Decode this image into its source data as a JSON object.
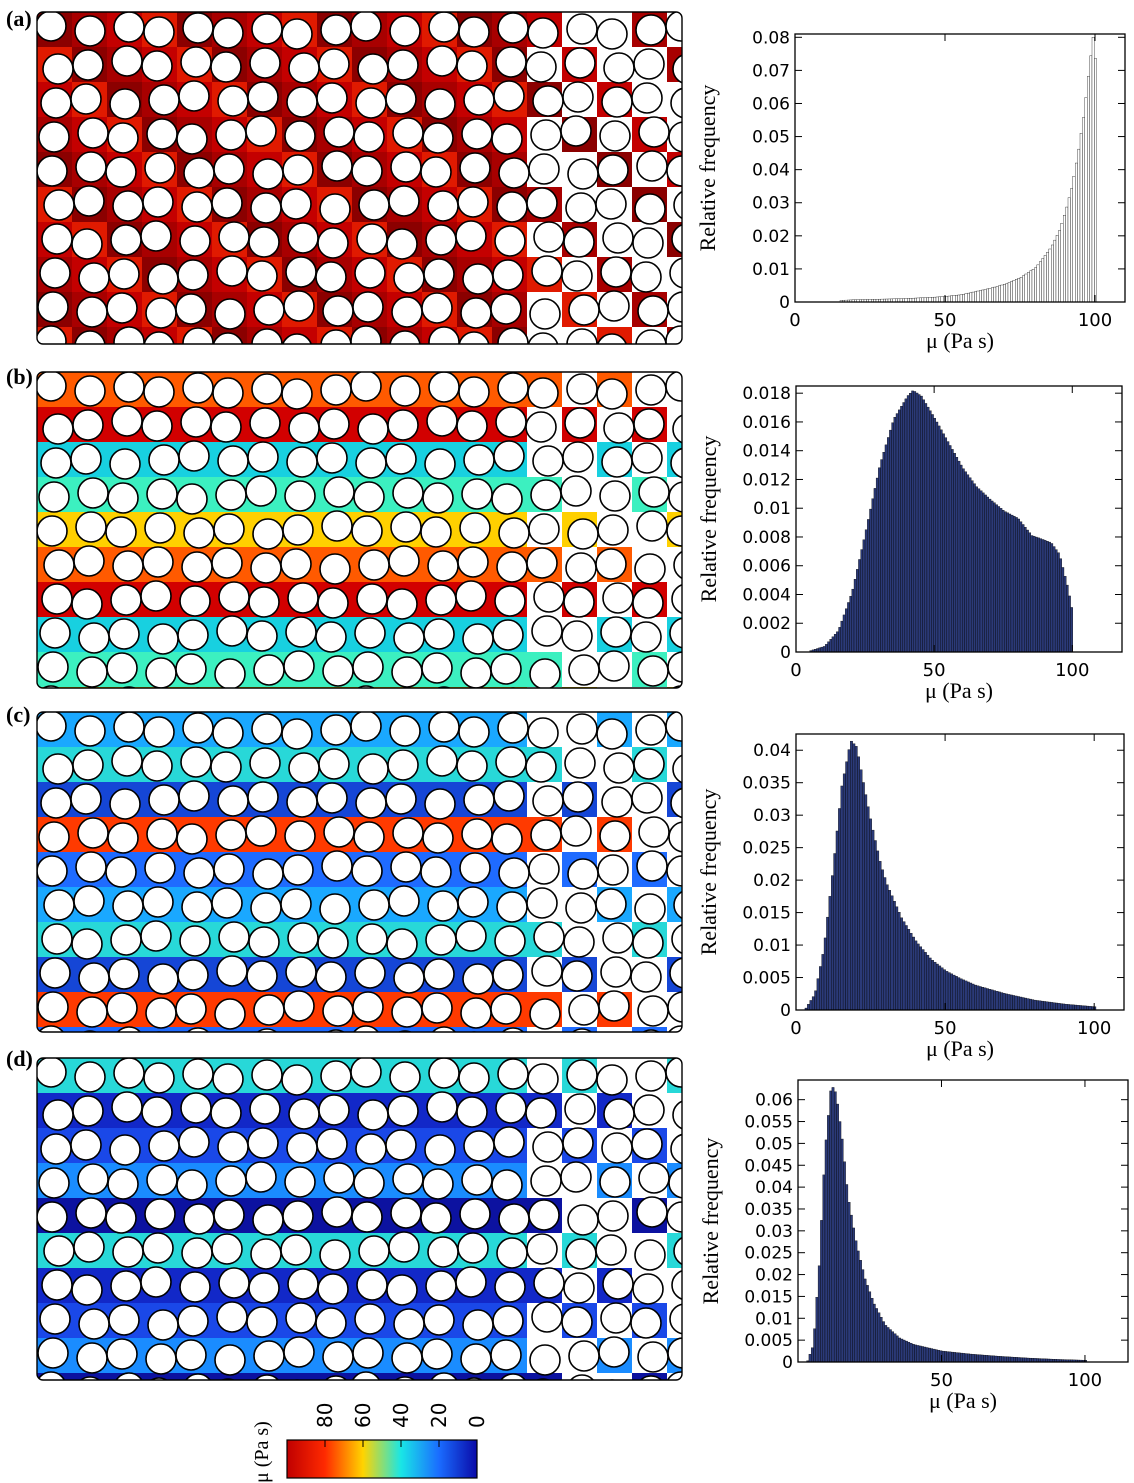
{
  "panel_labels": [
    "(a)",
    "(b)",
    "(c)",
    "(d)"
  ],
  "colorbar": {
    "label": "μ (Pa s)",
    "ticks": [
      "80",
      "60",
      "40",
      "20",
      "0"
    ],
    "range": [
      0,
      100
    ],
    "colors": [
      "#c00000",
      "#ff2a00",
      "#ffd400",
      "#19e6e6",
      "#1a6cff",
      "#0a0aa8"
    ]
  },
  "chart_data": [
    {
      "type": "bar",
      "title": "",
      "xlabel": "μ (Pa s)",
      "ylabel": "Relative frequency",
      "xlim": [
        0,
        110
      ],
      "ylim": [
        0,
        0.081
      ],
      "xticks": [
        "0",
        "50",
        "100"
      ],
      "yticks": [
        "0",
        "0.01",
        "0.02",
        "0.03",
        "0.04",
        "0.05",
        "0.06",
        "0.07",
        "0.08"
      ],
      "bar_color": "#ffffff",
      "x": [
        15,
        20,
        25,
        30,
        35,
        40,
        45,
        50,
        55,
        60,
        65,
        70,
        75,
        80,
        85,
        88,
        90,
        92,
        94,
        96,
        98,
        99,
        100
      ],
      "values": [
        0.0005,
        0.0007,
        0.0008,
        0.0009,
        0.001,
        0.0012,
        0.0014,
        0.0017,
        0.0022,
        0.0032,
        0.0042,
        0.0055,
        0.0075,
        0.0105,
        0.0165,
        0.022,
        0.028,
        0.035,
        0.045,
        0.057,
        0.073,
        0.08,
        0.072
      ]
    },
    {
      "type": "bar",
      "title": "",
      "xlabel": "μ (Pa s)",
      "ylabel": "Relative frequency",
      "xlim": [
        0,
        118
      ],
      "ylim": [
        0,
        0.0185
      ],
      "xticks": [
        "0",
        "50",
        "100"
      ],
      "yticks": [
        "0",
        "0.002",
        "0.004",
        "0.006",
        "0.008",
        "0.01",
        "0.012",
        "0.014",
        "0.016",
        "0.018"
      ],
      "bar_color": "#2b3a78",
      "x": [
        5,
        10,
        15,
        20,
        25,
        30,
        35,
        40,
        42,
        45,
        50,
        55,
        60,
        65,
        70,
        75,
        80,
        85,
        88,
        92,
        95,
        98,
        100
      ],
      "values": [
        0.0001,
        0.0004,
        0.0015,
        0.0042,
        0.0085,
        0.013,
        0.0162,
        0.0178,
        0.0182,
        0.0178,
        0.0162,
        0.0145,
        0.0128,
        0.0115,
        0.0106,
        0.0098,
        0.0093,
        0.0081,
        0.0079,
        0.0076,
        0.0068,
        0.0045,
        0.0025
      ]
    },
    {
      "type": "bar",
      "title": "",
      "xlabel": "μ (Pa s)",
      "ylabel": "Relative frequency",
      "xlim": [
        0,
        110
      ],
      "ylim": [
        0,
        0.0425
      ],
      "xticks": [
        "0",
        "50",
        "100"
      ],
      "yticks": [
        "0",
        "0.005",
        "0.01",
        "0.015",
        "0.02",
        "0.025",
        "0.03",
        "0.035",
        "0.04"
      ],
      "bar_color": "#2b3a78",
      "x": [
        3,
        6,
        9,
        12,
        15,
        18,
        20,
        22,
        25,
        28,
        30,
        35,
        40,
        45,
        50,
        55,
        60,
        70,
        80,
        90,
        100
      ],
      "values": [
        0.0003,
        0.0025,
        0.0095,
        0.0215,
        0.0345,
        0.0415,
        0.0405,
        0.0355,
        0.0285,
        0.0225,
        0.0195,
        0.0142,
        0.0105,
        0.0078,
        0.006,
        0.0048,
        0.0038,
        0.0025,
        0.0015,
        0.0009,
        0.0005
      ]
    },
    {
      "type": "bar",
      "title": "",
      "xlabel": "μ (Pa s)",
      "ylabel": "Relative frequency",
      "xlim": [
        0,
        115
      ],
      "ylim": [
        0,
        0.0645
      ],
      "xticks": [
        "50",
        "100"
      ],
      "yticks": [
        "0",
        "0.005",
        "0.01",
        "0.015",
        "0.02",
        "0.025",
        "0.03",
        "0.035",
        "0.04",
        "0.045",
        "0.05",
        "0.055",
        "0.06"
      ],
      "bar_color": "#2b3a78",
      "x": [
        3,
        5,
        7,
        9,
        11,
        12,
        13,
        15,
        17,
        20,
        23,
        26,
        30,
        35,
        40,
        50,
        60,
        70,
        80,
        90,
        100
      ],
      "values": [
        0.0003,
        0.004,
        0.022,
        0.048,
        0.062,
        0.063,
        0.061,
        0.051,
        0.038,
        0.027,
        0.019,
        0.0135,
        0.0085,
        0.0055,
        0.004,
        0.0025,
        0.0018,
        0.0013,
        0.0009,
        0.0006,
        0.0004
      ]
    }
  ]
}
